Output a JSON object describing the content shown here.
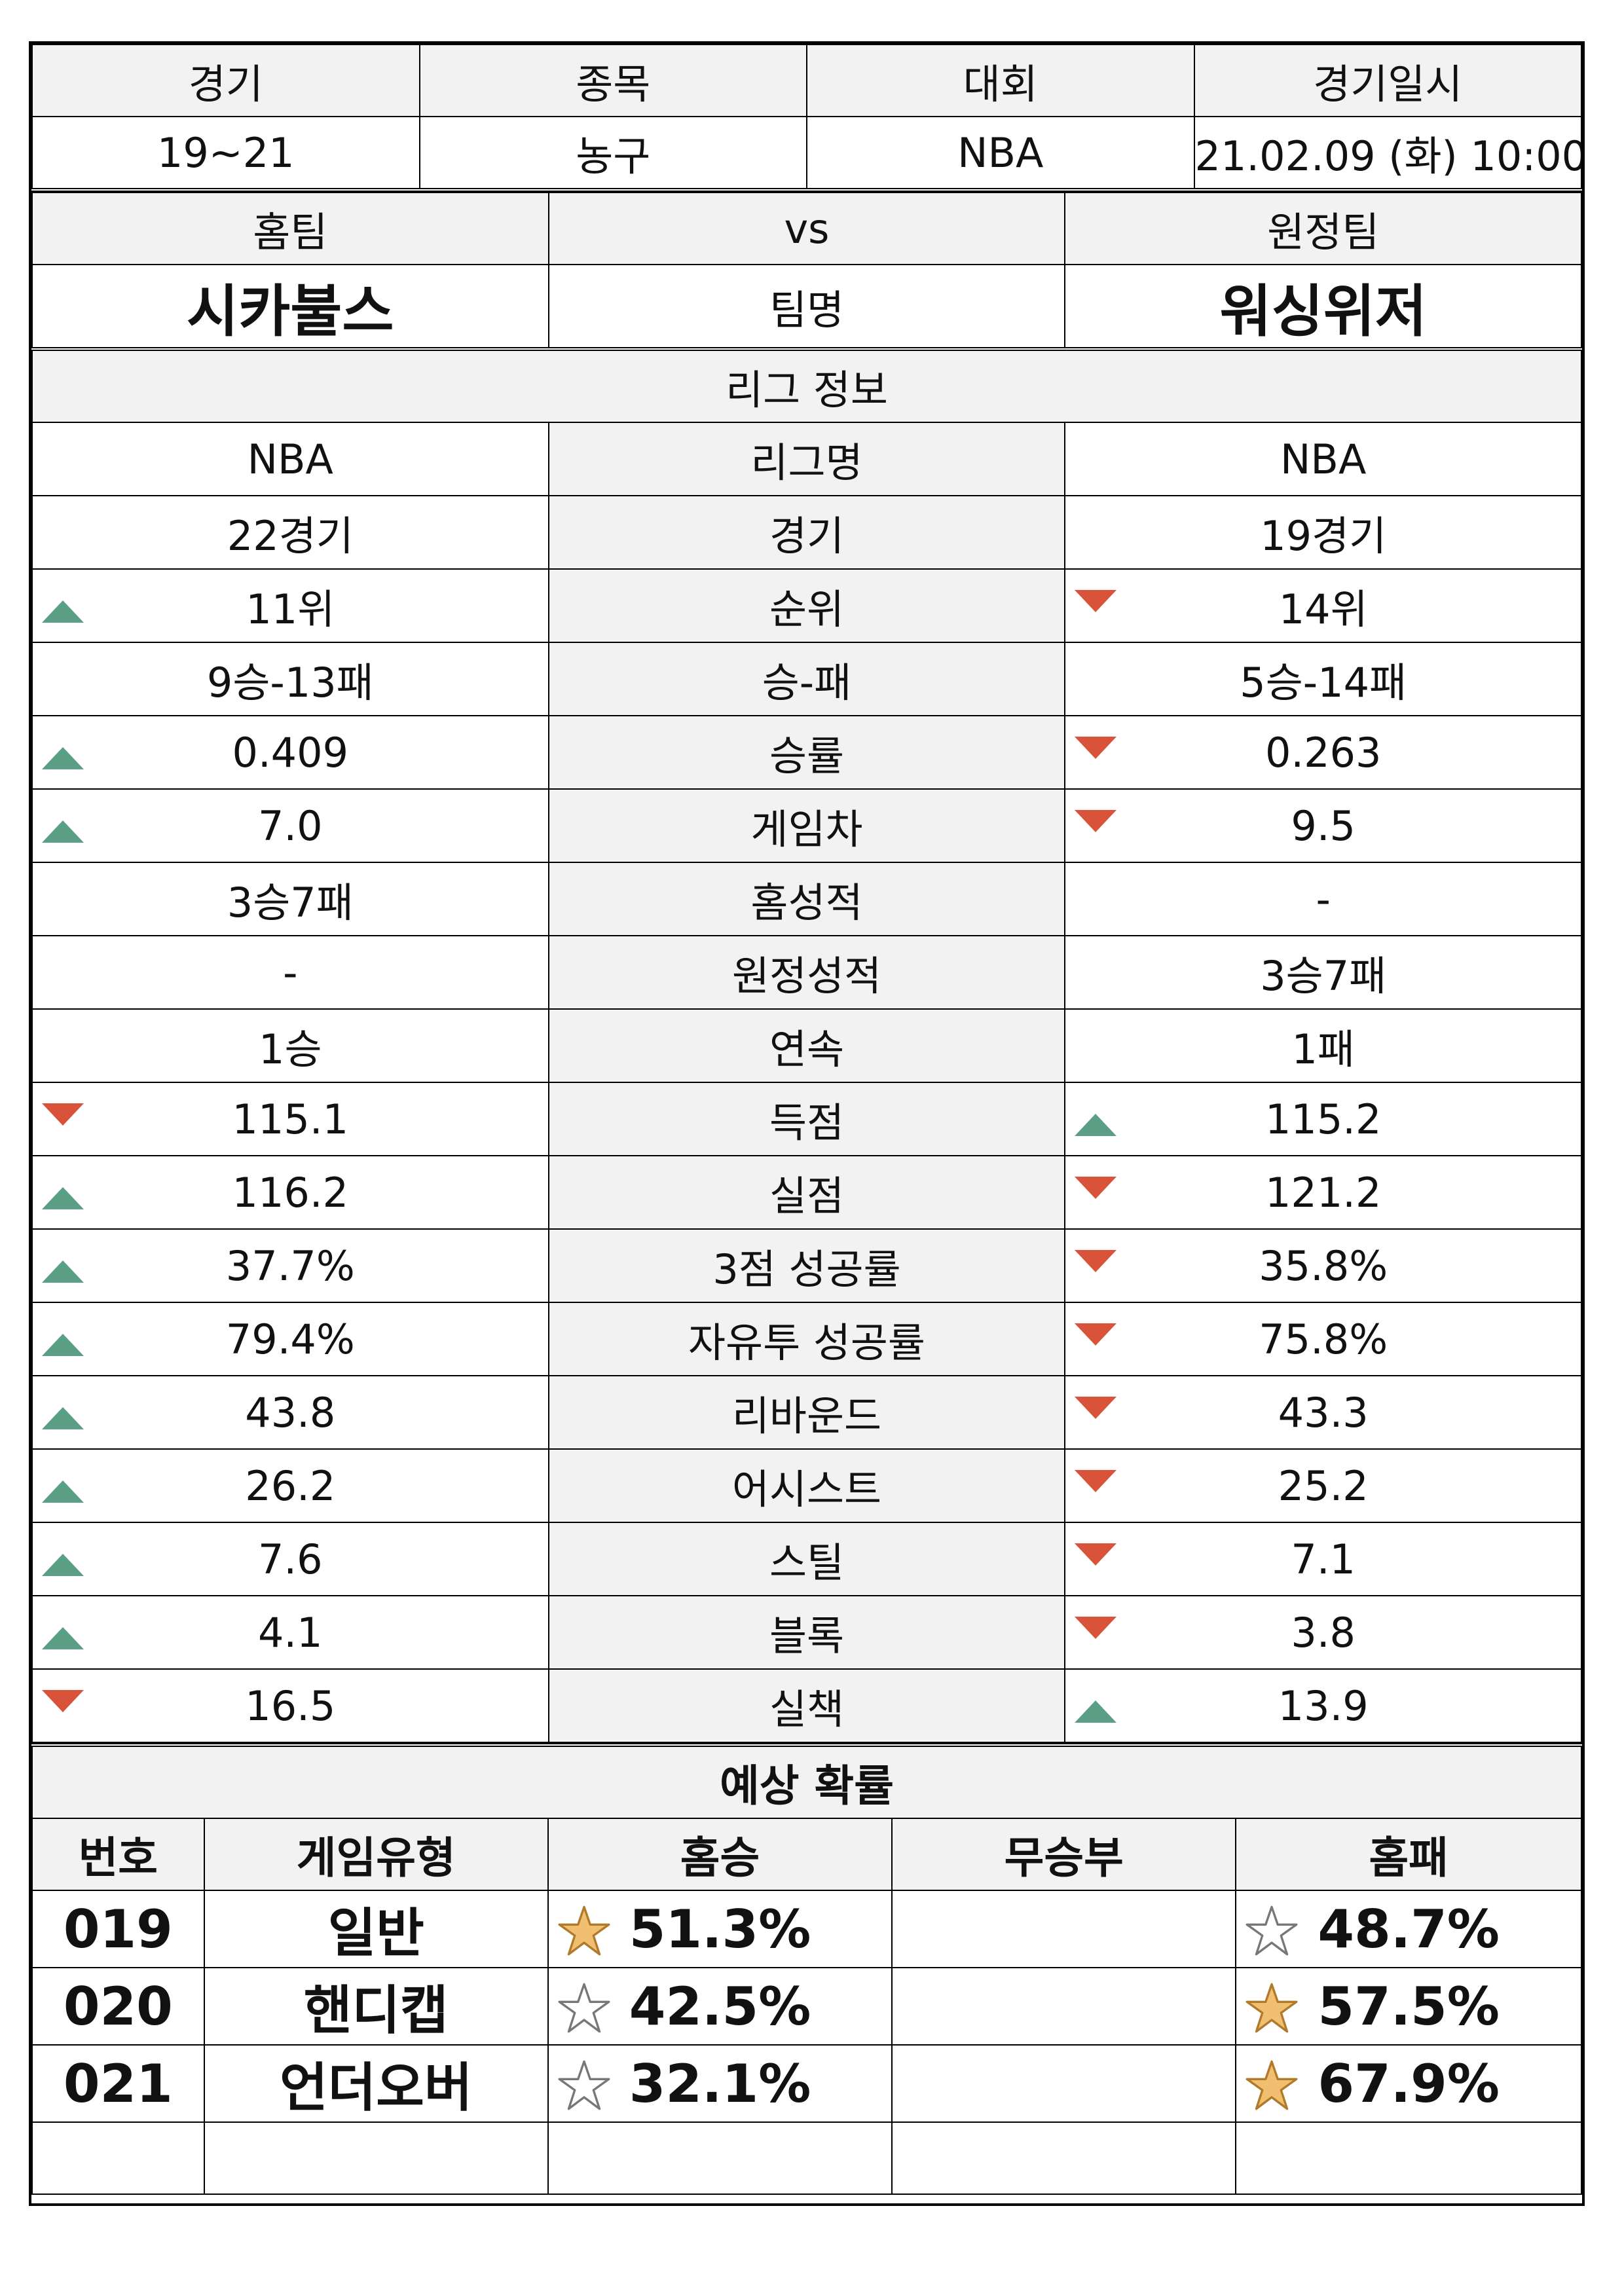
{
  "header": {
    "labels": [
      "경기",
      "종목",
      "대회",
      "경기일시"
    ],
    "values": [
      "19~21",
      "농구",
      "NBA",
      "21.02.09 (화) 10:00"
    ]
  },
  "teams": {
    "home_label": "홈팀",
    "vs_label": "vs",
    "away_label": "원정팀",
    "home_name": "시카불스",
    "name_label": "팀명",
    "away_name": "워싱위저"
  },
  "league": {
    "section_title": "리그 정보",
    "rows": [
      {
        "label": "리그명",
        "home": "NBA",
        "away": "NBA",
        "home_trend": "",
        "away_trend": ""
      },
      {
        "label": "경기",
        "home": "22경기",
        "away": "19경기",
        "home_trend": "",
        "away_trend": ""
      },
      {
        "label": "순위",
        "home": "11위",
        "away": "14위",
        "home_trend": "up",
        "away_trend": "down"
      },
      {
        "label": "승-패",
        "home": "9승-13패",
        "away": "5승-14패",
        "home_trend": "",
        "away_trend": ""
      },
      {
        "label": "승률",
        "home": "0.409",
        "away": "0.263",
        "home_trend": "up",
        "away_trend": "down"
      },
      {
        "label": "게임차",
        "home": "7.0",
        "away": "9.5",
        "home_trend": "up",
        "away_trend": "down"
      },
      {
        "label": "홈성적",
        "home": "3승7패",
        "away": "-",
        "home_trend": "",
        "away_trend": ""
      },
      {
        "label": "원정성적",
        "home": "-",
        "away": "3승7패",
        "home_trend": "",
        "away_trend": ""
      },
      {
        "label": "연속",
        "home": "1승",
        "away": "1패",
        "home_trend": "",
        "away_trend": ""
      },
      {
        "label": "득점",
        "home": "115.1",
        "away": "115.2",
        "home_trend": "down",
        "away_trend": "up"
      },
      {
        "label": "실점",
        "home": "116.2",
        "away": "121.2",
        "home_trend": "up",
        "away_trend": "down"
      },
      {
        "label": "3점 성공률",
        "home": "37.7%",
        "away": "35.8%",
        "home_trend": "up",
        "away_trend": "down"
      },
      {
        "label": "자유투 성공률",
        "home": "79.4%",
        "away": "75.8%",
        "home_trend": "up",
        "away_trend": "down"
      },
      {
        "label": "리바운드",
        "home": "43.8",
        "away": "43.3",
        "home_trend": "up",
        "away_trend": "down"
      },
      {
        "label": "어시스트",
        "home": "26.2",
        "away": "25.2",
        "home_trend": "up",
        "away_trend": "down"
      },
      {
        "label": "스틸",
        "home": "7.6",
        "away": "7.1",
        "home_trend": "up",
        "away_trend": "down"
      },
      {
        "label": "블록",
        "home": "4.1",
        "away": "3.8",
        "home_trend": "up",
        "away_trend": "down"
      },
      {
        "label": "실책",
        "home": "16.5",
        "away": "13.9",
        "home_trend": "down",
        "away_trend": "up"
      }
    ]
  },
  "prediction": {
    "section_title": "예상 확률",
    "columns": [
      "번호",
      "게임유형",
      "홈승",
      "무승부",
      "홈패"
    ],
    "rows": [
      {
        "no": "019",
        "type": "일반",
        "home_win": "51.3%",
        "draw": "",
        "home_loss": "48.7%",
        "home_star": "filled",
        "loss_star": "empty"
      },
      {
        "no": "020",
        "type": "핸디캡",
        "home_win": "42.5%",
        "draw": "",
        "home_loss": "57.5%",
        "home_star": "empty",
        "loss_star": "filled"
      },
      {
        "no": "021",
        "type": "언더오버",
        "home_win": "32.1%",
        "draw": "",
        "home_loss": "67.9%",
        "home_star": "empty",
        "loss_star": "filled"
      }
    ]
  },
  "colors": {
    "up": "#5a9e86",
    "down": "#d9533a",
    "star_fill": "#f0c070",
    "header_bg": "#f2f2f2"
  }
}
